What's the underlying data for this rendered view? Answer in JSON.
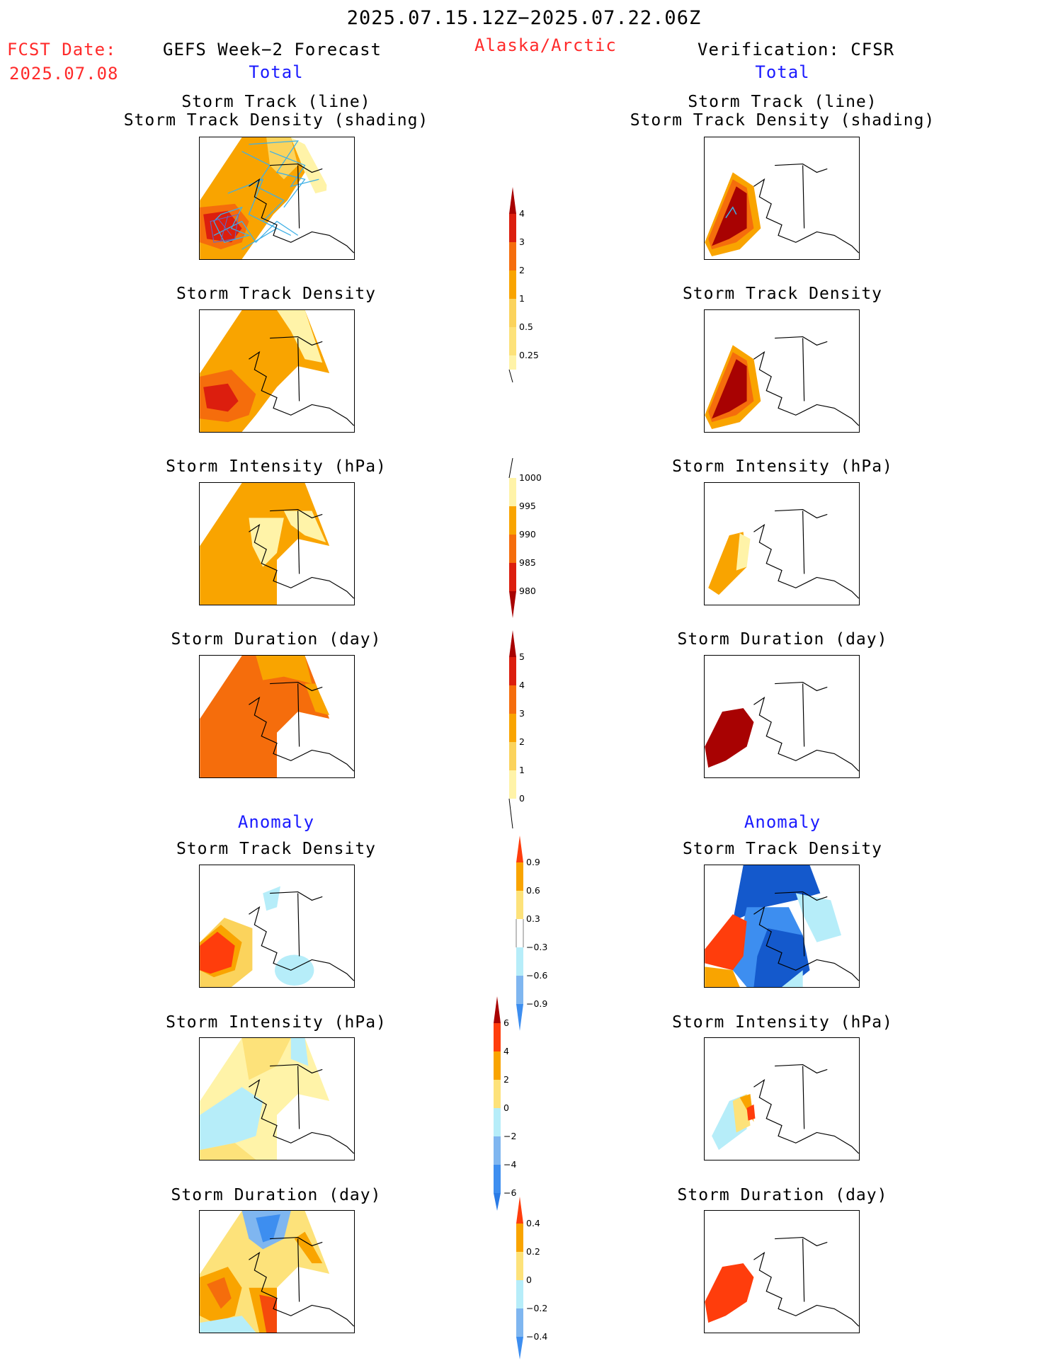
{
  "header": {
    "date_range": "2025.07.15.12Z−2025.07.22.06Z",
    "region": "Alaska/Arctic",
    "fcst_label": "FCST Date:",
    "fcst_date": "2025.07.08",
    "left_title": "GEFS Week−2 Forecast",
    "left_sub": "Total",
    "right_title": "Verification: CFSR",
    "right_sub": "Total",
    "anomaly_left": "Anomaly",
    "anomaly_right": "Anomaly"
  },
  "panel_titles": {
    "track_line": "Storm Track (line)",
    "track_shading": "Storm Track Density (shading)",
    "density": "Storm Track Density",
    "intensity": "Storm Intensity (hPa)",
    "duration": "Storm Duration (day)"
  },
  "colorbars": {
    "density_total": [
      "4",
      "3",
      "2",
      "1",
      "0.5",
      "0.25"
    ],
    "intensity_total": [
      "1000",
      "995",
      "990",
      "985",
      "980"
    ],
    "duration_total": [
      "5",
      "4",
      "3",
      "2",
      "1",
      "0"
    ],
    "density_anom": [
      "0.9",
      "0.6",
      "0.3",
      "−0.3",
      "−0.6",
      "−0.9"
    ],
    "intensity_anom": [
      "6",
      "4",
      "2",
      "0",
      "−2",
      "−4",
      "−6"
    ],
    "duration_anom": [
      "0.4",
      "0.2",
      "0",
      "−0.2",
      "−0.4"
    ]
  },
  "colors": {
    "light_yellow": "#fff3a8",
    "yellow": "#fbd35c",
    "orange": "#f9a400",
    "dark_orange": "#f56d0c",
    "red": "#dc1e0e",
    "dark_red": "#a80202",
    "light_blue": "#b6edf9",
    "blue": "#7fb6f0",
    "mid_blue": "#3d8ef0",
    "dark_blue": "#1459cc",
    "track_line": "#3fb0e6"
  }
}
